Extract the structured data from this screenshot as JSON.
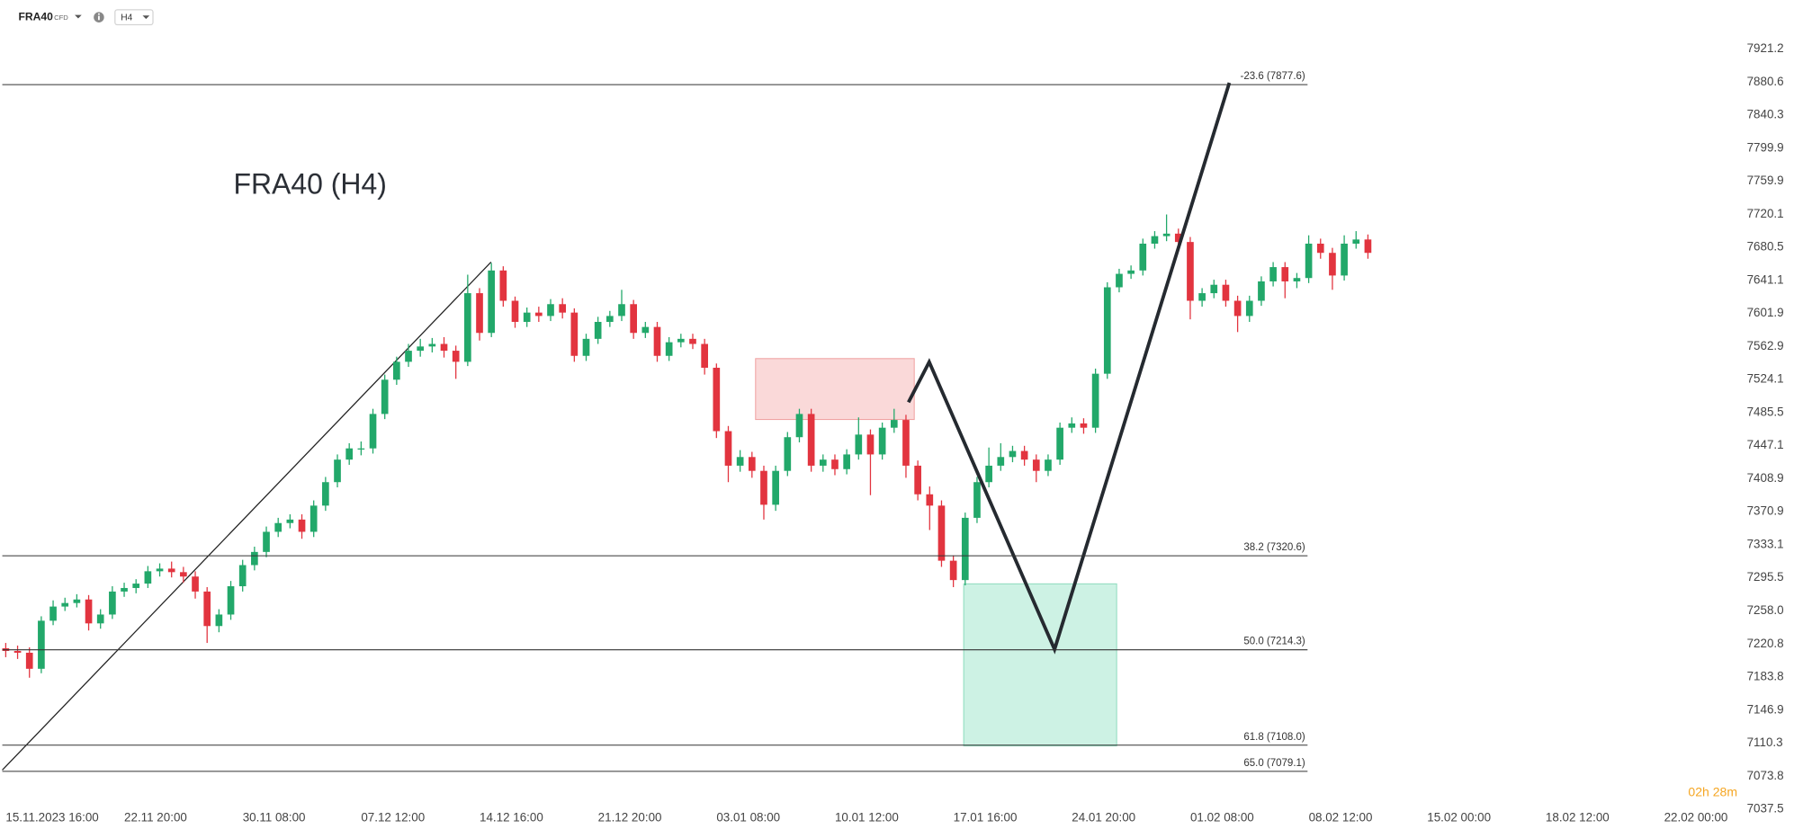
{
  "toolbar": {
    "symbol": "FRA40",
    "badge": "CFD",
    "interval": "H4"
  },
  "countdown": "02h 28m",
  "chart_data": {
    "type": "candlestick",
    "title": "FRA40 (H4)",
    "log_scale": true,
    "grid": false,
    "up_color": "#22a86a",
    "down_color": "#e2343f",
    "ylim": [
      7015,
      7982
    ],
    "yticks": [
      7921.2,
      7880.6,
      7840.3,
      7799.9,
      7759.9,
      7720.1,
      7680.5,
      7641.1,
      7601.9,
      7562.9,
      7524.1,
      7485.5,
      7447.1,
      7408.9,
      7370.9,
      7333.1,
      7295.5,
      {
        "value": 7258,
        "label": "7258.0"
      },
      7220.8,
      7183.8,
      7146.9,
      7110.3,
      7073.8,
      7037.5
    ],
    "categories": [
      "15.11.2023 16:00",
      null,
      null,
      null,
      null,
      null,
      null,
      null,
      null,
      null,
      "22.11 20:00",
      null,
      null,
      null,
      null,
      null,
      null,
      null,
      null,
      null,
      "30.11 08:00",
      null,
      null,
      null,
      null,
      null,
      null,
      null,
      null,
      null,
      "07.12 12:00",
      null,
      null,
      null,
      null,
      null,
      null,
      null,
      null,
      null,
      "14.12 16:00",
      null,
      null,
      null,
      null,
      null,
      null,
      null,
      null,
      null,
      "21.12 20:00",
      null,
      null,
      null,
      null,
      null,
      null,
      null,
      null,
      null,
      "03.01 08:00",
      null,
      null,
      null,
      null,
      null,
      null,
      null,
      null,
      null,
      "10.01 12:00",
      null,
      null,
      null,
      null,
      null,
      null,
      null,
      null,
      null,
      "17.01 16:00",
      null,
      null,
      null,
      null,
      null,
      null,
      null,
      null,
      null,
      "24.01 20:00",
      null,
      null,
      null,
      null,
      null,
      null,
      null,
      null,
      null,
      "01.02 08:00",
      null,
      null,
      null,
      null,
      null,
      null,
      null,
      null,
      null,
      "08.02 12:00",
      null,
      null,
      null,
      null,
      null,
      null,
      null,
      null,
      null,
      "15.02 00:00",
      null,
      null,
      null,
      null,
      null,
      null,
      null,
      null,
      null,
      "18.02 12:00",
      null,
      null,
      null,
      null,
      null,
      null,
      null,
      null,
      null,
      "22.02 00:00"
    ],
    "open": [
      7216,
      7213,
      7211,
      7193,
      7247,
      7263,
      7267,
      7271,
      7244,
      7254,
      7280,
      7284,
      7289,
      7303,
      7306,
      7302,
      7297,
      7280,
      7241,
      7254,
      7286,
      7310,
      7325,
      7348,
      7358,
      7362,
      7348,
      7378,
      7405,
      7431,
      7444,
      7444,
      7484,
      7524,
      7545,
      7558,
      7563,
      7566,
      7558,
      7545,
      7626,
      7579,
      7653,
      7617,
      7592,
      7603,
      7599,
      7613,
      7603,
      7552,
      7572,
      7592,
      7599,
      7613,
      7579,
      7586,
      7552,
      7568,
      7572,
      7566,
      7538,
      7464,
      7424,
      7434,
      7418,
      7379,
      7418,
      7457,
      7484,
      7424,
      7431,
      7420,
      7437,
      7460,
      7437,
      7468,
      7477,
      7424,
      7391,
      7378,
      7315,
      7293,
      7364,
      7405,
      7424,
      7434,
      7441,
      7431,
      7418,
      7431,
      7468,
      7473,
      7468,
      7531,
      7633,
      7649,
      7653,
      7685,
      7694,
      7697,
      7687,
      7617,
      7626,
      7636,
      7617,
      7599,
      7617,
      7640,
      7657,
      7640,
      7644,
      7685,
      7674,
      7647,
      7685,
      7690,
      null,
      null,
      null,
      null,
      null,
      null,
      null,
      null,
      null,
      null,
      null,
      null,
      null,
      null,
      null,
      null,
      null,
      null,
      null,
      null,
      null,
      null,
      null,
      null,
      null
    ],
    "high": [
      7222,
      7219,
      7217,
      7252,
      7270,
      7273,
      7277,
      7276,
      7260,
      7286,
      7290,
      7294,
      7309,
      7312,
      7314,
      7308,
      7303,
      7285,
      7260,
      7292,
      7316,
      7331,
      7354,
      7364,
      7368,
      7368,
      7384,
      7411,
      7437,
      7450,
      7452,
      7490,
      7530,
      7551,
      7566,
      7572,
      7573,
      7574,
      7564,
      7648,
      7632,
      7662,
      7658,
      7622,
      7609,
      7610,
      7619,
      7620,
      7608,
      7578,
      7598,
      7605,
      7630,
      7618,
      7592,
      7592,
      7574,
      7578,
      7578,
      7572,
      7543,
      7470,
      7442,
      7440,
      7424,
      7424,
      7463,
      7490,
      7490,
      7437,
      7437,
      7443,
      7480,
      7466,
      7474,
      7490,
      7483,
      7430,
      7400,
      7384,
      7321,
      7370,
      7411,
      7445,
      7450,
      7447,
      7447,
      7437,
      7437,
      7474,
      7480,
      7479,
      7537,
      7639,
      7655,
      7659,
      7691,
      7700,
      7720,
      7703,
      7693,
      7632,
      7642,
      7642,
      7623,
      7623,
      7646,
      7663,
      7663,
      7650,
      7695,
      7691,
      7680,
      7695,
      7700,
      7696,
      null,
      null,
      null,
      null,
      null,
      null,
      null,
      null,
      null,
      null,
      null,
      null,
      null,
      null,
      null,
      null,
      null,
      null,
      null,
      null,
      null,
      null,
      null,
      null,
      null
    ],
    "low": [
      7206,
      7204,
      7183,
      7188,
      7242,
      7258,
      7262,
      7236,
      7238,
      7249,
      7274,
      7278,
      7284,
      7297,
      7296,
      7290,
      7272,
      7222,
      7234,
      7248,
      7280,
      7304,
      7319,
      7342,
      7352,
      7340,
      7342,
      7372,
      7399,
      7425,
      7436,
      7438,
      7478,
      7518,
      7539,
      7551,
      7556,
      7550,
      7525,
      7540,
      7570,
      7574,
      7610,
      7585,
      7586,
      7592,
      7593,
      7596,
      7545,
      7546,
      7566,
      7586,
      7593,
      7572,
      7573,
      7545,
      7546,
      7562,
      7560,
      7530,
      7456,
      7405,
      7417,
      7410,
      7362,
      7372,
      7412,
      7451,
      7417,
      7417,
      7413,
      7414,
      7431,
      7390,
      7431,
      7462,
      7410,
      7384,
      7350,
      7308,
      7285,
      7287,
      7358,
      7399,
      7418,
      7428,
      7424,
      7405,
      7412,
      7425,
      7462,
      7461,
      7462,
      7525,
      7627,
      7643,
      7647,
      7679,
      7688,
      7680,
      7595,
      7610,
      7620,
      7610,
      7580,
      7592,
      7611,
      7634,
      7620,
      7632,
      7638,
      7667,
      7630,
      7641,
      7679,
      7667,
      null,
      null,
      null,
      null,
      null,
      null,
      null,
      null,
      null,
      null,
      null,
      null,
      null,
      null,
      null,
      null,
      null,
      null,
      null,
      null,
      null,
      null,
      null,
      null,
      null
    ],
    "close": [
      7213,
      7211,
      7193,
      7247,
      7263,
      7267,
      7271,
      7244,
      7254,
      7280,
      7284,
      7289,
      7303,
      7306,
      7302,
      7297,
      7280,
      7241,
      7254,
      7286,
      7310,
      7325,
      7348,
      7358,
      7362,
      7348,
      7378,
      7405,
      7431,
      7444,
      7444,
      7484,
      7524,
      7545,
      7558,
      7563,
      7566,
      7558,
      7545,
      7626,
      7579,
      7653,
      7617,
      7592,
      7603,
      7599,
      7613,
      7603,
      7552,
      7572,
      7592,
      7599,
      7613,
      7579,
      7586,
      7552,
      7568,
      7572,
      7566,
      7538,
      7464,
      7424,
      7434,
      7418,
      7379,
      7418,
      7457,
      7484,
      7424,
      7431,
      7420,
      7437,
      7460,
      7437,
      7468,
      7477,
      7424,
      7391,
      7378,
      7315,
      7293,
      7364,
      7405,
      7424,
      7434,
      7441,
      7431,
      7418,
      7431,
      7468,
      7473,
      7468,
      7531,
      7633,
      7649,
      7653,
      7685,
      7694,
      7697,
      7687,
      7617,
      7626,
      7636,
      7617,
      7599,
      7617,
      7640,
      7657,
      7640,
      7644,
      7685,
      7674,
      7647,
      7685,
      7690,
      7674,
      null,
      null,
      null,
      null,
      null,
      null,
      null,
      null,
      null,
      null,
      null,
      null,
      null,
      null,
      null,
      null,
      null,
      null,
      null,
      null,
      null,
      null,
      null,
      null,
      null
    ],
    "fib_levels": [
      {
        "label": "-23.6 (7877.6)",
        "value": 7877.6
      },
      {
        "label": "38.2 (7320.6)",
        "value": 7320.6
      },
      {
        "label": "50.0 (7214.3)",
        "value": 7214.3
      },
      {
        "label": "61.8 (7108.0)",
        "value": 7108.0
      },
      {
        "label": "65.0 (7079.1)",
        "value": 7079.1
      }
    ]
  }
}
